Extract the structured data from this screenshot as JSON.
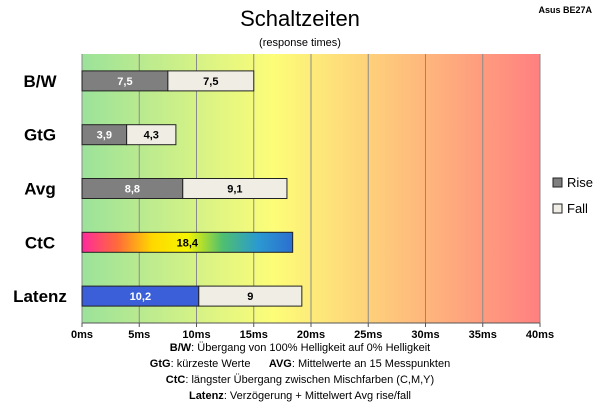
{
  "header": {
    "title": "Schaltzeiten",
    "subtitle": "(response times)",
    "model": "Asus BE27A"
  },
  "chart_data": {
    "type": "bar",
    "orientation": "horizontal",
    "stacked": true,
    "categories": [
      "B/W",
      "GtG",
      "Avg",
      "CtC",
      "Latenz"
    ],
    "series": [
      {
        "name": "Rise",
        "values": [
          7.5,
          3.9,
          8.8,
          18.4,
          10.2
        ],
        "labels": [
          "7,5",
          "3,9",
          "8,8",
          "18,4",
          "10,2"
        ]
      },
      {
        "name": "Fall",
        "values": [
          7.5,
          4.3,
          9.1,
          null,
          9
        ],
        "labels": [
          "7,5",
          "4,3",
          "9,1",
          "",
          "9"
        ]
      }
    ],
    "xlim": [
      0,
      40
    ],
    "xticks": [
      0,
      5,
      10,
      15,
      20,
      25,
      30,
      35,
      40
    ],
    "xtick_labels": [
      "0ms",
      "5ms",
      "10ms",
      "15ms",
      "20ms",
      "25ms",
      "30ms",
      "35ms",
      "40ms"
    ],
    "grid": true,
    "legend_position": "right",
    "colors": {
      "rise": "#7f7f7f",
      "fall": "#f0ede5",
      "latenz_rise": "#3a5fd8",
      "bg_start": "#9be29a",
      "bg_mid": "#fdfd78",
      "bg_end": "#ff8080",
      "ctc_gradient": [
        "#ff2a9d",
        "#ff6a3a",
        "#ffd800",
        "#f5f500",
        "#4fbf6f",
        "#2b9ad0",
        "#2b6fd0"
      ]
    }
  },
  "legend": {
    "rise": "Rise",
    "fall": "Fall"
  },
  "footnotes": [
    {
      "key": "B/W",
      "text": ":  Übergang von 100% Helligkeit auf 0% Helligkeit"
    },
    {
      "key": "GtG",
      "text": ": kürzeste  Werte",
      "key2": "AVG",
      "text2": ": Mittelwerte  an 15 Messpunkten"
    },
    {
      "key": "CtC",
      "text": ": längster Übergang  zwischen Mischfarben  (C,M,Y)"
    },
    {
      "key": "Latenz",
      "text": ": Verzögerung  + Mittelwert Avg rise/fall"
    }
  ]
}
